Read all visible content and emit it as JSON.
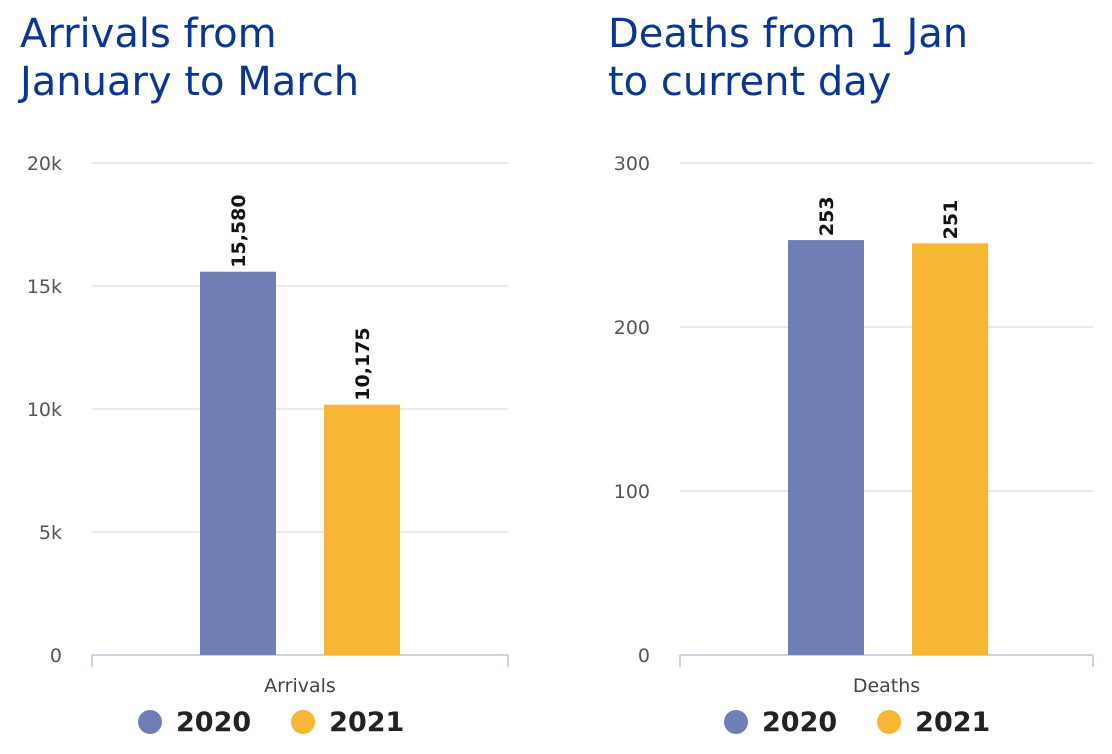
{
  "chart_data": [
    {
      "type": "bar",
      "title": [
        "Arrivals from",
        "January to March"
      ],
      "categories": [
        "Arrivals"
      ],
      "series": [
        {
          "name": "2020",
          "values": [
            15580
          ],
          "color": "#6f7fb5",
          "label": "15,580"
        },
        {
          "name": "2021",
          "values": [
            10175
          ],
          "color": "#f7b634",
          "label": "10,175"
        }
      ],
      "ylim": [
        0,
        20000
      ],
      "yticks": [
        0,
        5000,
        10000,
        15000,
        20000
      ],
      "ytick_labels": [
        "0",
        "5k",
        "10k",
        "15k",
        "20k"
      ],
      "grid": true,
      "legend": "bottom"
    },
    {
      "type": "bar",
      "title": [
        "Deaths from 1 Jan",
        "to current day"
      ],
      "categories": [
        "Deaths"
      ],
      "series": [
        {
          "name": "2020",
          "values": [
            253
          ],
          "color": "#6f7fb5",
          "label": "253"
        },
        {
          "name": "2021",
          "values": [
            251
          ],
          "color": "#f7b634",
          "label": "251"
        }
      ],
      "ylim": [
        0,
        300
      ],
      "yticks": [
        0,
        100,
        200,
        300
      ],
      "ytick_labels": [
        "0",
        "100",
        "200",
        "300"
      ],
      "grid": true,
      "legend": "bottom"
    }
  ]
}
